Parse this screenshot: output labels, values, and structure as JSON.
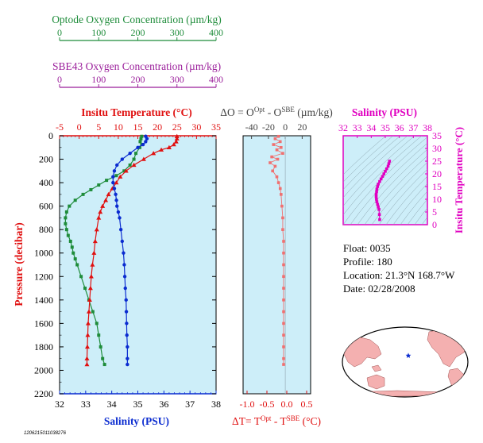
{
  "colors": {
    "green": "#1e8c3a",
    "purple": "#9b1f9b",
    "red": "#e01010",
    "blue": "#0a2bd0",
    "magenta": "#e000c0",
    "salmon": "#f07070",
    "grey_label": "#444444",
    "panel_bg": "#cdeef9",
    "map_ocean": "#ffffff",
    "map_land": "#f4b0b0"
  },
  "optode_axis": {
    "label": "Optode Oxygen Concentration (µm/kg)",
    "ticks": [
      "0",
      "100",
      "200",
      "300",
      "400"
    ]
  },
  "sbe_axis": {
    "label": "SBE43 Oxygen Concentration (µm/kg)",
    "ticks": [
      "0",
      "100",
      "200",
      "300",
      "400"
    ]
  },
  "temp_axis": {
    "label": "Insitu Temperature (°C)",
    "ticks": [
      "-5",
      "0",
      "5",
      "10",
      "15",
      "20",
      "25",
      "30",
      "35"
    ]
  },
  "sal_axis": {
    "label": "Salinity (PSU)",
    "ticks": [
      "32",
      "33",
      "34",
      "35",
      "36",
      "37",
      "38"
    ]
  },
  "pressure_axis": {
    "label": "Pressure (decibar)",
    "ticks": [
      "0",
      "200",
      "400",
      "600",
      "800",
      "1000",
      "1200",
      "1400",
      "1600",
      "1800",
      "2000",
      "2200"
    ]
  },
  "delta_o": {
    "label_prefix": "ΔO = O",
    "label_sup1": "Opt",
    "label_mid": " - O",
    "label_sup2": "SBE",
    "label_suffix": " (µm/kg)",
    "ticks": [
      "-40",
      "-20",
      "0",
      "20"
    ]
  },
  "delta_t": {
    "label_prefix": "ΔT= T",
    "label_sup1": "Opt",
    "label_mid": " - T",
    "label_sup2": "SBE",
    "label_suffix": " (°C)",
    "ticks": [
      "-1.0",
      "-0.5",
      "0.0",
      "0.5"
    ]
  },
  "ts_plot": {
    "top_label": "Salinity (PSU)",
    "top_ticks": [
      "32",
      "33",
      "34",
      "35",
      "36",
      "37",
      "38"
    ],
    "right_label": "Insitu Temperature (°C)",
    "right_ticks": [
      "0",
      "5",
      "10",
      "15",
      "20",
      "25",
      "30",
      "35"
    ]
  },
  "info": {
    "float": "Float:  0035",
    "profile": "Profile:  180",
    "location": "Location:  21.3°N  168.7°W",
    "date": "Date:  02/28/2008"
  },
  "footer_id": "1206215011038276",
  "chart_data": [
    {
      "type": "line",
      "title": "Optode Oxygen Concentration (µm/kg)",
      "name": "oxygen",
      "xlim": [
        0,
        400
      ],
      "ylim": [
        2200,
        0
      ],
      "pressure": [
        5,
        25,
        50,
        75,
        100,
        150,
        200,
        250,
        300,
        340,
        380,
        420,
        460,
        500,
        550,
        600,
        650,
        700,
        750,
        800,
        850,
        900,
        950,
        1000,
        1050,
        1100,
        1200,
        1300,
        1400,
        1500,
        1600,
        1700,
        1800,
        1900,
        1950
      ],
      "values": [
        210,
        208,
        206,
        210,
        205,
        195,
        190,
        180,
        165,
        145,
        120,
        100,
        80,
        60,
        40,
        25,
        18,
        15,
        15,
        18,
        22,
        28,
        32,
        35,
        40,
        45,
        55,
        65,
        75,
        85,
        95,
        100,
        105,
        110,
        115
      ]
    },
    {
      "type": "line",
      "title": "Insitu Temperature (°C)",
      "name": "temperature",
      "xlim": [
        -5,
        35
      ],
      "ylim": [
        2200,
        0
      ],
      "pressure": [
        5,
        25,
        50,
        75,
        100,
        120,
        150,
        200,
        250,
        300,
        350,
        400,
        450,
        500,
        550,
        600,
        650,
        700,
        800,
        900,
        1000,
        1100,
        1200,
        1300,
        1400,
        1500,
        1600,
        1700,
        1800,
        1900,
        1950
      ],
      "values": [
        25.0,
        25.0,
        24.8,
        24.2,
        23.0,
        21.0,
        19.0,
        16.5,
        14.0,
        12.0,
        10.5,
        9.5,
        8.5,
        7.5,
        6.8,
        6.0,
        5.4,
        5.0,
        4.5,
        4.1,
        3.8,
        3.4,
        3.1,
        2.9,
        2.7,
        2.5,
        2.3,
        2.2,
        2.1,
        2.0,
        2.0
      ]
    },
    {
      "type": "line",
      "title": "Salinity (PSU)",
      "name": "salinity",
      "xlim": [
        32,
        38
      ],
      "ylim": [
        2200,
        0
      ],
      "pressure": [
        5,
        25,
        50,
        75,
        100,
        150,
        200,
        250,
        300,
        350,
        400,
        450,
        500,
        550,
        600,
        650,
        700,
        800,
        900,
        1000,
        1100,
        1200,
        1300,
        1400,
        1500,
        1600,
        1700,
        1800,
        1900,
        1950
      ],
      "values": [
        35.3,
        35.35,
        35.3,
        35.2,
        35.0,
        34.7,
        34.4,
        34.2,
        34.1,
        34.05,
        34.05,
        34.1,
        34.15,
        34.18,
        34.2,
        34.25,
        34.3,
        34.35,
        34.4,
        34.45,
        34.48,
        34.5,
        34.52,
        34.55,
        34.56,
        34.57,
        34.58,
        34.6,
        34.6,
        34.6
      ]
    },
    {
      "type": "scatter",
      "title": "ΔO = OOpt - OSBE (µm/kg)",
      "name": "delta_o",
      "xlim": [
        -50,
        30
      ],
      "ylim": [
        2200,
        0
      ],
      "pressure": [
        5,
        25,
        50,
        75,
        100,
        120,
        150,
        180,
        200,
        230,
        260,
        300,
        350,
        400,
        450,
        500,
        600,
        700,
        800,
        900,
        1000,
        1100,
        1200,
        1300,
        1400,
        1500,
        1600,
        1700,
        1800,
        1900,
        1950
      ],
      "values": [
        -8,
        -12,
        -6,
        -14,
        -5,
        -10,
        -3,
        -16,
        -9,
        -18,
        -12,
        -15,
        -10,
        -8,
        -6,
        -5,
        -4,
        -3,
        -3,
        -2,
        -2,
        -2,
        -2,
        -2,
        -2,
        -2,
        -2,
        -2,
        -2,
        -2,
        -2
      ]
    },
    {
      "type": "line",
      "title": "Salinity (PSU) / Insitu Temperature (°C)",
      "name": "ts_diagram",
      "xlim": [
        32,
        38
      ],
      "ylim": [
        0,
        35
      ],
      "x": [
        35.3,
        35.25,
        35.2,
        35.1,
        35.0,
        34.9,
        34.8,
        34.7,
        34.6,
        34.5,
        34.45,
        34.4,
        34.38,
        34.35,
        34.35,
        34.37,
        34.4,
        34.45,
        34.5,
        34.55,
        34.58,
        34.6
      ],
      "y": [
        25.0,
        24.0,
        23.0,
        22.0,
        21.0,
        20.0,
        19.0,
        18.0,
        17.0,
        16.0,
        15.0,
        14.0,
        13.0,
        12.0,
        11.0,
        10.0,
        9.0,
        8.0,
        7.0,
        6.0,
        4.0,
        2.0
      ]
    }
  ]
}
